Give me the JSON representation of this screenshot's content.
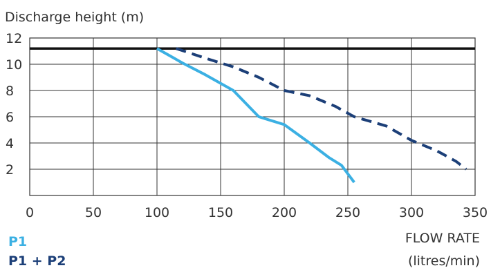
{
  "chart_data": {
    "type": "line",
    "ylabel": "Discharge height (m)",
    "xlabel_line1": "FLOW RATE",
    "xlabel_line2": "(litres/min)",
    "xlim": [
      0,
      350
    ],
    "ylim": [
      0,
      12
    ],
    "x_ticks": [
      0,
      50,
      100,
      150,
      200,
      250,
      300,
      350
    ],
    "y_ticks": [
      2,
      4,
      6,
      8,
      10,
      12
    ],
    "grid": true,
    "reference_line": {
      "y": 11.2,
      "color": "#111111"
    },
    "series": [
      {
        "name": "P1",
        "color": "#3BB0E3",
        "style": "solid",
        "x": [
          100,
          120,
          138,
          160,
          180,
          200,
          220,
          235,
          245,
          255
        ],
        "y": [
          11.2,
          10.1,
          9.2,
          8.0,
          6.0,
          5.4,
          4.0,
          2.9,
          2.3,
          1.0
        ]
      },
      {
        "name": "P1 + P2",
        "color": "#1C3F78",
        "style": "dashed",
        "x": [
          115,
          140,
          160,
          180,
          200,
          220,
          240,
          255,
          280,
          300,
          320,
          335,
          343
        ],
        "y": [
          11.2,
          10.4,
          9.8,
          9.0,
          8.0,
          7.6,
          6.8,
          6.0,
          5.3,
          4.2,
          3.4,
          2.6,
          2.0
        ]
      }
    ],
    "legend_position": "bottom-left"
  }
}
